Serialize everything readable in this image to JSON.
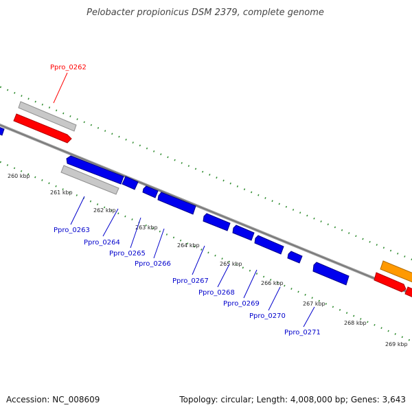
{
  "title": "Pelobacter propionicus DSM 2379, complete genome",
  "footer": {
    "accession": "Accession: NC_008609",
    "info": "Topology: circular; Length: 4,008,000 bp; Genes: 3,643"
  },
  "scale_labels": [
    "260 kbp",
    "261 kbp",
    "262 kbp",
    "263 kbp",
    "264 kbp",
    "265 kbp",
    "266 kbp",
    "267 kbp",
    "268 kbp",
    "269 kbp"
  ],
  "gene_labels": {
    "ppro_0262": "Ppro_0262",
    "ppro_0263": "Ppro_0263",
    "ppro_0264": "Ppro_0264",
    "ppro_0265": "Ppro_0265",
    "ppro_0266": "Ppro_0266",
    "ppro_0267": "Ppro_0267",
    "ppro_0268": "Ppro_0268",
    "ppro_0269": "Ppro_0269",
    "ppro_0270": "Ppro_0270",
    "ppro_0271": "Ppro_0271"
  },
  "colors": {
    "backbone": "#8a8a8a",
    "tick": "#2e8b2e",
    "forward_gene": "#ff0000",
    "reverse_gene": "#0000ee",
    "pseudo_gene": "#c4c4c4",
    "rna_gene": "#ff9900",
    "label_red": "#ff0000",
    "label_blue": "#0000cc"
  }
}
